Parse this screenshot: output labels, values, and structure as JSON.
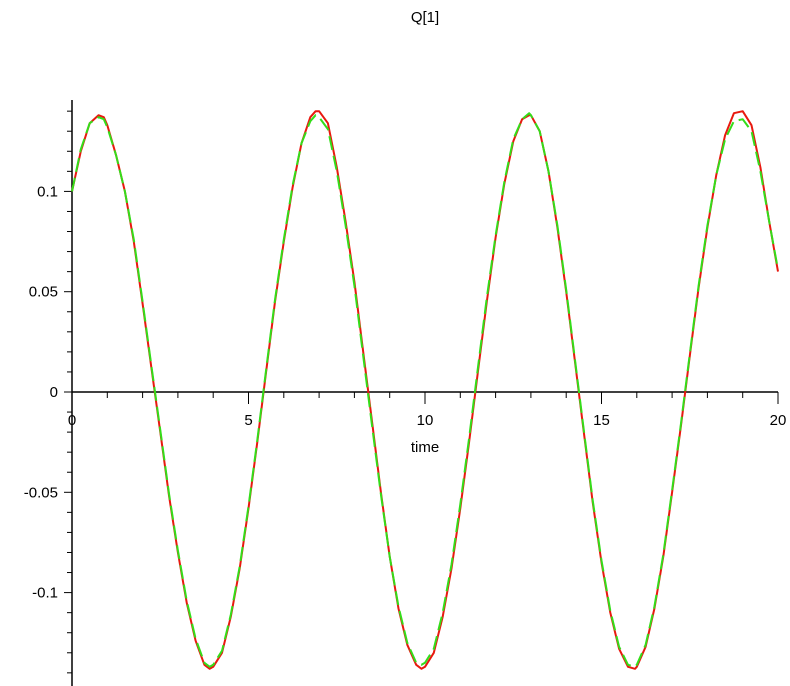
{
  "chart_data": {
    "type": "line",
    "title": "Q[1]",
    "xlabel": "time",
    "ylabel": "",
    "xlim": [
      0,
      20
    ],
    "ylim": [
      -0.14,
      0.14
    ],
    "grid": false,
    "x_ticks": [
      {
        "value": 0,
        "label": "0"
      },
      {
        "value": 5,
        "label": "5"
      },
      {
        "value": 10,
        "label": "10"
      },
      {
        "value": 15,
        "label": "15"
      },
      {
        "value": 20,
        "label": "20"
      }
    ],
    "y_ticks": [
      {
        "value": 0.1,
        "label": "0.1"
      },
      {
        "value": 0.05,
        "label": "0.05"
      },
      {
        "value": 0,
        "label": "0"
      },
      {
        "value": -0.05,
        "label": "-0.05"
      },
      {
        "value": -0.1,
        "label": "-0.1"
      }
    ],
    "series": [
      {
        "color": "#e8190f",
        "style": "solid",
        "x": [
          0,
          0.25,
          0.5,
          0.75,
          0.9,
          1.0,
          1.25,
          1.5,
          1.75,
          2.0,
          2.25,
          2.5,
          2.75,
          3.0,
          3.25,
          3.5,
          3.75,
          3.9,
          4.0,
          4.25,
          4.5,
          4.75,
          5.0,
          5.25,
          5.5,
          5.75,
          6.0,
          6.25,
          6.5,
          6.75,
          6.9,
          7.0,
          7.25,
          7.5,
          7.75,
          8.0,
          8.25,
          8.5,
          8.75,
          9.0,
          9.25,
          9.5,
          9.75,
          9.9,
          10.0,
          10.25,
          10.5,
          10.75,
          11.0,
          11.25,
          11.5,
          11.75,
          12.0,
          12.25,
          12.5,
          12.75,
          12.95,
          13.0,
          13.25,
          13.5,
          13.75,
          14.0,
          14.25,
          14.5,
          14.75,
          15.0,
          15.25,
          15.5,
          15.75,
          15.95,
          16.0,
          16.25,
          16.5,
          16.75,
          17.0,
          17.25,
          17.5,
          17.75,
          18.0,
          18.25,
          18.5,
          18.75,
          19.0,
          19.25,
          19.5,
          19.75,
          20.0
        ],
        "y": [
          0.1,
          0.12,
          0.134,
          0.138,
          0.137,
          0.133,
          0.118,
          0.1,
          0.075,
          0.044,
          0.012,
          -0.02,
          -0.052,
          -0.08,
          -0.105,
          -0.124,
          -0.136,
          -0.138,
          -0.137,
          -0.13,
          -0.112,
          -0.088,
          -0.058,
          -0.025,
          0.01,
          0.045,
          0.075,
          0.102,
          0.124,
          0.137,
          0.14,
          0.14,
          0.134,
          0.112,
          0.085,
          0.055,
          0.02,
          -0.015,
          -0.05,
          -0.082,
          -0.108,
          -0.126,
          -0.136,
          -0.138,
          -0.137,
          -0.13,
          -0.112,
          -0.088,
          -0.058,
          -0.025,
          0.01,
          0.045,
          0.077,
          0.104,
          0.125,
          0.136,
          0.138,
          0.138,
          0.13,
          0.11,
          0.082,
          0.05,
          0.015,
          -0.02,
          -0.055,
          -0.085,
          -0.11,
          -0.128,
          -0.137,
          -0.138,
          -0.137,
          -0.127,
          -0.108,
          -0.082,
          -0.05,
          -0.017,
          0.018,
          0.052,
          0.082,
          0.108,
          0.128,
          0.139,
          0.14,
          0.133,
          0.112,
          0.085,
          0.06
        ]
      },
      {
        "color": "#33dd1a",
        "style": "dashed",
        "x": [
          0,
          0.25,
          0.5,
          0.75,
          0.9,
          1.0,
          1.25,
          1.5,
          1.75,
          2.0,
          2.25,
          2.5,
          2.75,
          3.0,
          3.25,
          3.5,
          3.75,
          3.9,
          4.0,
          4.25,
          4.5,
          4.75,
          5.0,
          5.25,
          5.5,
          5.75,
          6.0,
          6.25,
          6.5,
          6.75,
          6.9,
          7.0,
          7.25,
          7.5,
          7.75,
          8.0,
          8.25,
          8.5,
          8.75,
          9.0,
          9.25,
          9.5,
          9.75,
          9.9,
          10.0,
          10.25,
          10.5,
          10.75,
          11.0,
          11.25,
          11.5,
          11.75,
          12.0,
          12.25,
          12.5,
          12.75,
          12.95,
          13.0,
          13.25,
          13.5,
          13.75,
          14.0,
          14.25,
          14.5,
          14.75,
          15.0,
          15.25,
          15.5,
          15.75,
          15.95,
          16.0,
          16.25,
          16.5,
          16.75,
          17.0,
          17.25,
          17.5,
          17.75,
          18.0,
          18.25,
          18.5,
          18.75,
          19.0,
          19.25,
          19.5,
          19.75,
          20.0
        ],
        "y": [
          0.1,
          0.121,
          0.134,
          0.137,
          0.136,
          0.132,
          0.118,
          0.1,
          0.076,
          0.045,
          0.013,
          -0.019,
          -0.051,
          -0.079,
          -0.104,
          -0.123,
          -0.135,
          -0.137,
          -0.136,
          -0.129,
          -0.111,
          -0.087,
          -0.057,
          -0.024,
          0.011,
          0.046,
          0.076,
          0.103,
          0.124,
          0.135,
          0.138,
          0.137,
          0.131,
          0.11,
          0.083,
          0.053,
          0.018,
          -0.017,
          -0.051,
          -0.082,
          -0.107,
          -0.125,
          -0.135,
          -0.136,
          -0.135,
          -0.128,
          -0.11,
          -0.086,
          -0.056,
          -0.023,
          0.012,
          0.047,
          0.078,
          0.105,
          0.126,
          0.136,
          0.139,
          0.138,
          0.13,
          0.11,
          0.083,
          0.051,
          0.016,
          -0.019,
          -0.054,
          -0.084,
          -0.109,
          -0.127,
          -0.136,
          -0.137,
          -0.136,
          -0.126,
          -0.107,
          -0.081,
          -0.049,
          -0.016,
          0.019,
          0.053,
          0.083,
          0.108,
          0.126,
          0.135,
          0.136,
          0.13,
          0.11,
          0.085,
          0.061
        ]
      }
    ]
  }
}
